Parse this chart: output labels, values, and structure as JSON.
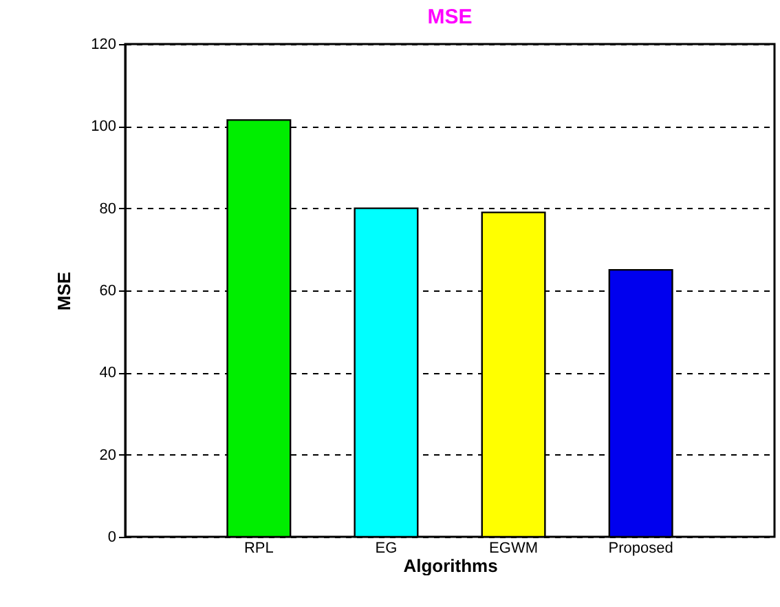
{
  "chart_data": {
    "type": "bar",
    "title": "MSE",
    "xlabel": "Algorithms",
    "ylabel": "MSE",
    "categories": [
      "RPL",
      "EG",
      "EGWM",
      "Proposed"
    ],
    "values": [
      101.5,
      80,
      79,
      65
    ],
    "colors": [
      "#00ee00",
      "#00ffff",
      "#ffff00",
      "#0000ee"
    ],
    "ylim": [
      0,
      120
    ],
    "yticks": [
      0,
      20,
      40,
      60,
      80,
      100,
      120
    ],
    "grid": "y"
  }
}
